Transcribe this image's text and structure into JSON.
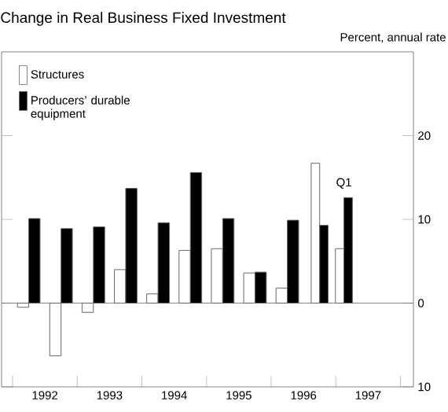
{
  "chart_data": {
    "type": "bar",
    "title": "Change in Real Business Fixed Investment",
    "ylabel": "Percent, annual rate",
    "x": [
      1992.25,
      1992.75,
      1993.25,
      1993.75,
      1994.25,
      1994.75,
      1995.25,
      1995.75,
      1996.25,
      1996.75,
      1997.125
    ],
    "series": [
      {
        "name": "Structures",
        "color": "#ffffff",
        "values": [
          -0.5,
          -6.3,
          -1.1,
          4.0,
          1.1,
          6.3,
          6.5,
          3.6,
          1.8,
          16.7,
          6.5
        ]
      },
      {
        "name": "Producers’ durable equipment",
        "color": "#000000",
        "values": [
          10.1,
          8.9,
          9.1,
          13.7,
          9.6,
          15.6,
          10.1,
          3.7,
          9.9,
          9.3,
          12.6
        ]
      }
    ],
    "xlim": [
      1991.83,
      1998.2
    ],
    "xticks": [
      {
        "value": 1992,
        "label": null
      },
      {
        "value": 1993,
        "label": null
      },
      {
        "value": 1994,
        "label": null
      },
      {
        "value": 1995,
        "label": null
      },
      {
        "value": 1996,
        "label": null
      },
      {
        "value": 1997,
        "label": null
      },
      {
        "value": 1998,
        "label": null
      },
      {
        "value": 1992.5,
        "label": "1992"
      },
      {
        "value": 1993.5,
        "label": "1993"
      },
      {
        "value": 1994.5,
        "label": "1994"
      },
      {
        "value": 1995.5,
        "label": "1995"
      },
      {
        "value": 1996.5,
        "label": "1996"
      },
      {
        "value": 1997.5,
        "label": "1997"
      }
    ],
    "ylim": [
      -10,
      30
    ],
    "yticks": [
      {
        "value": -10,
        "label": "10"
      },
      {
        "value": 0,
        "label": "0"
      },
      10,
      20
    ],
    "ref_lines": [
      {
        "axis": "y",
        "value": 0
      }
    ],
    "annotations": [
      "Q1"
    ],
    "legend": "top left",
    "grid": false
  }
}
